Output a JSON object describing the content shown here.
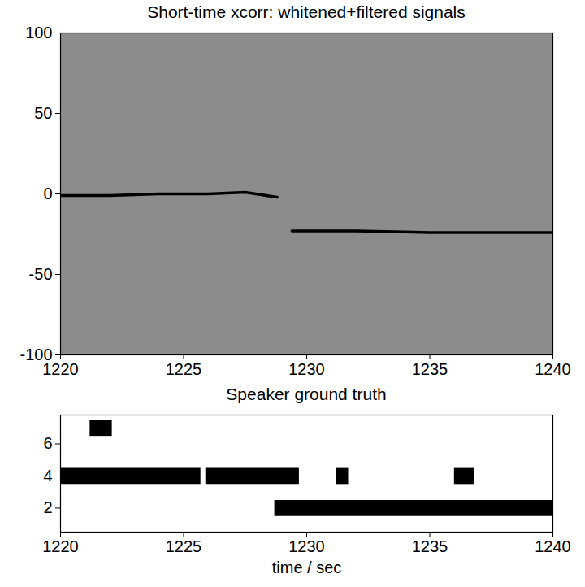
{
  "chart_data": [
    {
      "type": "line",
      "title": "Short-time xcorr: whitened+filtered signals",
      "x": [
        1220,
        1222,
        1224,
        1226,
        1227.5,
        1228.8,
        1229.1,
        1229.4,
        1232,
        1235,
        1238,
        1240
      ],
      "values": [
        -1,
        -1,
        0,
        0,
        1,
        -2,
        null,
        -23,
        -23,
        -24,
        -24,
        -24
      ],
      "color": "#000000",
      "xlim": [
        1220,
        1240
      ],
      "xticks": [
        1220,
        1225,
        1230,
        1235,
        1240
      ],
      "ylim": [
        -100,
        100
      ],
      "yticks": [
        -100,
        -50,
        0,
        50,
        100
      ]
    },
    {
      "type": "timeline",
      "title": "Speaker ground truth",
      "x_label": "time / sec",
      "segments": [
        {
          "y": 7,
          "start": 1221.2,
          "end": 1222.1
        },
        {
          "y": 4,
          "start": 1220,
          "end": 1225.7
        },
        {
          "y": 4,
          "start": 1225.9,
          "end": 1229.7
        },
        {
          "y": 4,
          "start": 1231.2,
          "end": 1231.7
        },
        {
          "y": 4,
          "start": 1236.0,
          "end": 1236.8
        },
        {
          "y": 2,
          "start": 1228.7,
          "end": 1240
        }
      ],
      "color": "#000000",
      "xlim": [
        1220,
        1240
      ],
      "xticks": [
        1220,
        1225,
        1230,
        1235,
        1240
      ],
      "ylim": [
        0.5,
        7.8
      ],
      "yticks": [
        2,
        4,
        6
      ]
    }
  ]
}
